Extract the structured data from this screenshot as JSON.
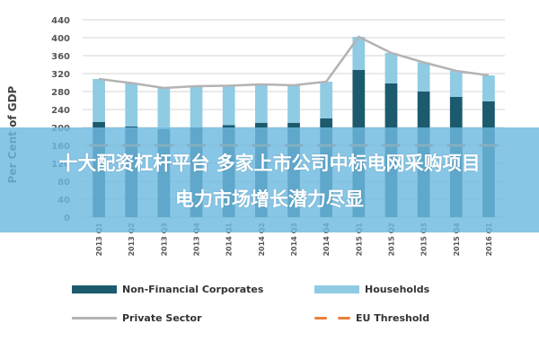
{
  "chart_data": {
    "type": "bar",
    "stacked": true,
    "categories": [
      "2013 Q1",
      "2013 Q2",
      "2013 Q3",
      "2013 Q4",
      "2014 Q1",
      "2014 Q2",
      "2014 Q3",
      "2014 Q4",
      "2015 Q1",
      "2015 Q2",
      "2015 Q3",
      "2015 Q4",
      "2016 Q1"
    ],
    "ylabel": "Per Cent of GDP",
    "ylim": [
      0,
      440
    ],
    "yticks": [
      0,
      40,
      80,
      120,
      160,
      200,
      240,
      280,
      320,
      360,
      400,
      440
    ],
    "grid": true,
    "series": [
      {
        "name": "Non-Financial Corporates",
        "kind": "bar",
        "color": "#1c5a6e",
        "values": [
          212,
          202,
          196,
          200,
          205,
          210,
          210,
          220,
          328,
          298,
          280,
          268,
          258
        ]
      },
      {
        "name": "Households",
        "kind": "bar",
        "color": "#8fcbe3",
        "values": [
          96,
          97,
          92,
          92,
          88,
          86,
          84,
          82,
          74,
          68,
          65,
          58,
          58
        ]
      },
      {
        "name": "Private Sector",
        "kind": "line",
        "color": "#b3b3b3",
        "values": [
          308,
          299,
          288,
          292,
          293,
          296,
          294,
          302,
          402,
          366,
          345,
          326,
          316
        ]
      },
      {
        "name": "EU Threshold",
        "kind": "threshold",
        "color": "#e8823a",
        "value": 160
      }
    ],
    "legend_position": "bottom"
  },
  "overlay": {
    "line1": "十大配资杠杆平台 多家上市公司中标电网采购项目",
    "line2": "电力市场增长潜力尽显"
  }
}
